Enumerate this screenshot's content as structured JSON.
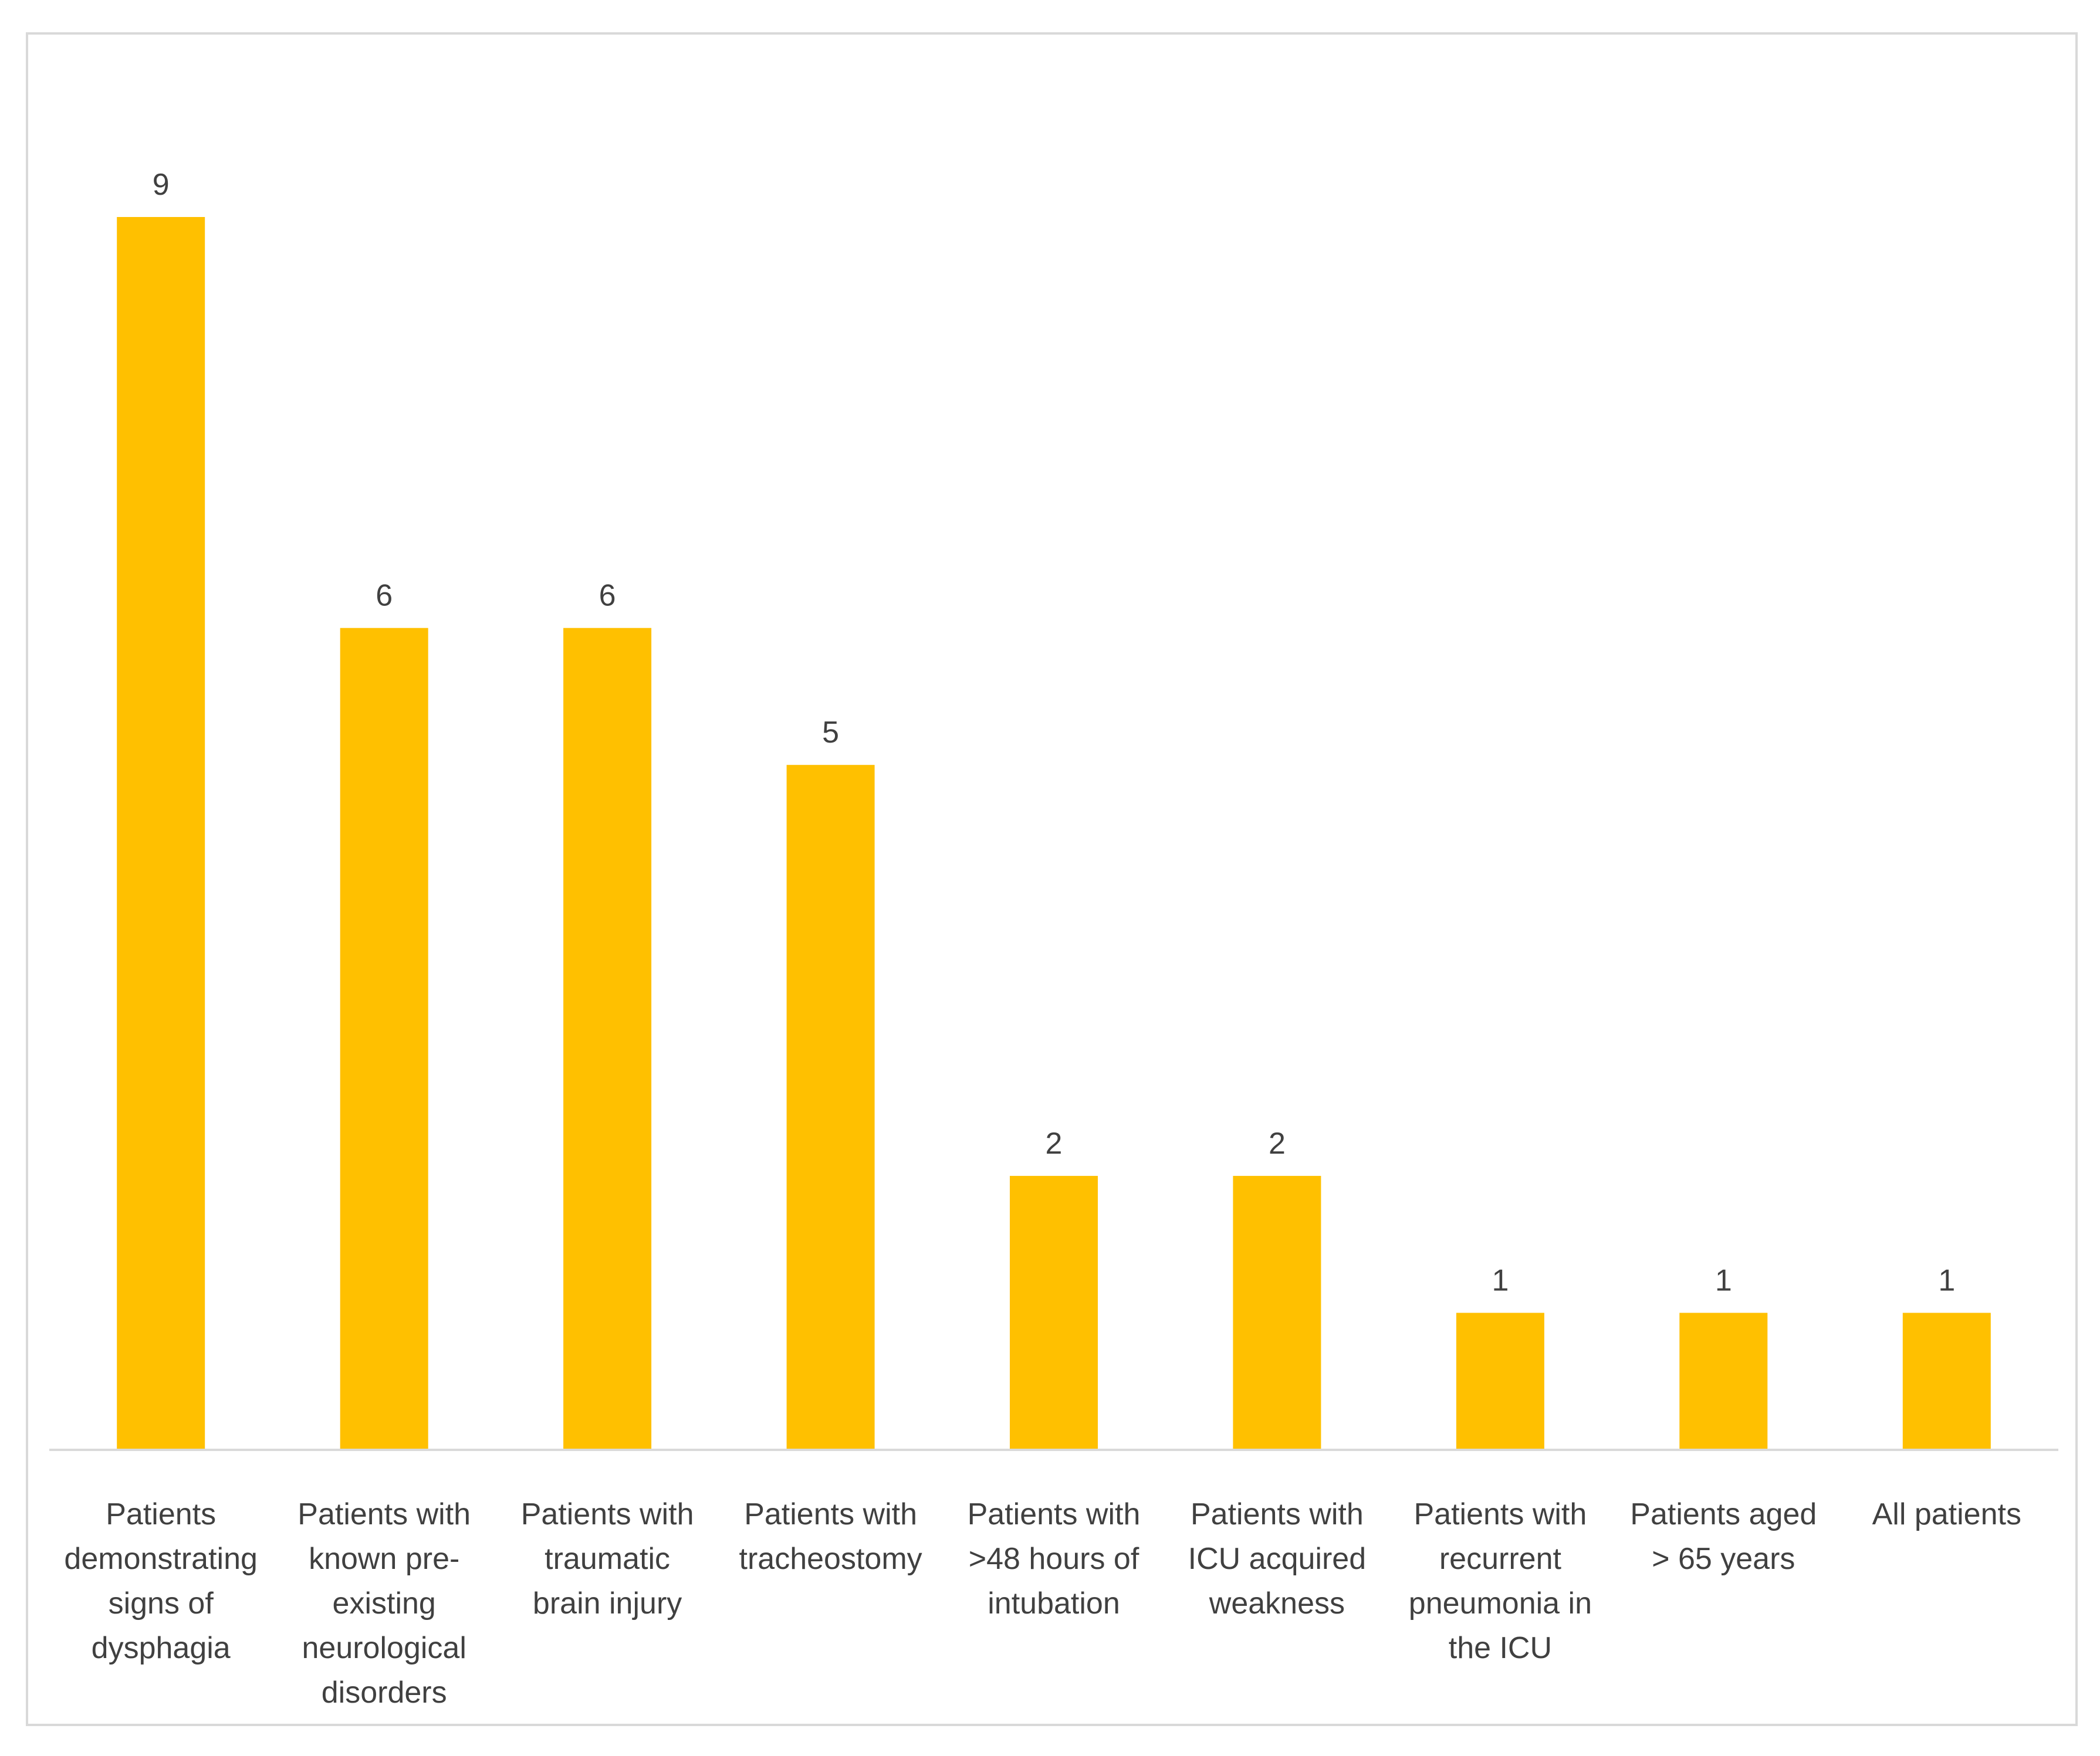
{
  "colors": {
    "bar": "#FFC000",
    "axis": "#d9d9d9"
  },
  "chart_data": {
    "type": "bar",
    "title": "",
    "xlabel": "",
    "ylabel": "",
    "ylim": [
      0,
      9
    ],
    "grid": false,
    "legend": "none",
    "categories": [
      "Patients demonstrating signs of dysphagia",
      "Patients with known pre-existing neurological disorders",
      "Patients with traumatic brain injury",
      "Patients with tracheostomy",
      "Patients with >48 hours of intubation",
      "Patients with ICU acquired weakness",
      "Patients with recurrent pneumonia in the ICU",
      "Patients aged > 65 years",
      "All patients"
    ],
    "category_lines": [
      [
        "Patients",
        "demonstrating",
        "signs of",
        "dysphagia"
      ],
      [
        "Patients with",
        "known pre-",
        "existing",
        "neurological",
        "disorders"
      ],
      [
        "Patients with",
        "traumatic",
        "brain injury"
      ],
      [
        "Patients with",
        "tracheostomy"
      ],
      [
        "Patients with",
        ">48 hours of",
        "intubation"
      ],
      [
        "Patients with",
        "ICU acquired",
        "weakness"
      ],
      [
        "Patients with",
        "recurrent",
        "pneumonia in",
        "the ICU"
      ],
      [
        "Patients aged",
        "> 65 years"
      ],
      [
        "All patients"
      ]
    ],
    "values": [
      9,
      6,
      6,
      5,
      2,
      2,
      1,
      1,
      1
    ],
    "data_labels": [
      "9",
      "6",
      "6",
      "5",
      "2",
      "2",
      "1",
      "1",
      "1"
    ]
  }
}
